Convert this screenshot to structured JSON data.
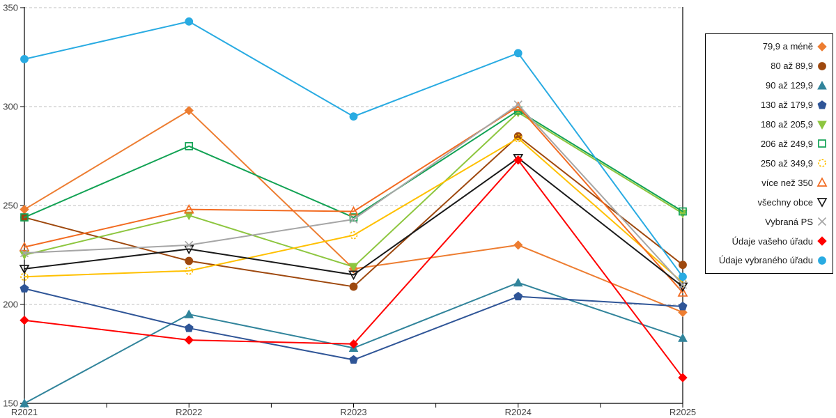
{
  "chart_data": {
    "type": "line",
    "title": "",
    "xlabel": "",
    "ylabel": "",
    "categories": [
      "R2021",
      "R2022",
      "R2023",
      "R2024",
      "R2025"
    ],
    "ylim": [
      150,
      350
    ],
    "yticks": [
      150,
      200,
      250,
      300,
      350
    ],
    "grid": "horizontal dashed",
    "legend_position": "right box",
    "axis_label_color": "#404040",
    "gridline_color": "#bfbfbf",
    "series": [
      {
        "name": "79,9 a méně",
        "color": "#ED7D31",
        "marker": "diamond",
        "filled": true,
        "values": [
          248,
          298,
          218,
          230,
          196
        ]
      },
      {
        "name": "80 až 89,9",
        "color": "#9E480E",
        "marker": "circle",
        "filled": true,
        "values": [
          244,
          222,
          209,
          285,
          220
        ]
      },
      {
        "name": "90 až 129,9",
        "color": "#31849B",
        "marker": "triangle-up",
        "filled": true,
        "values": [
          150,
          195,
          178,
          211,
          183
        ]
      },
      {
        "name": "130 až 179,9",
        "color": "#2F5597",
        "marker": "pentagon",
        "filled": true,
        "values": [
          208,
          188,
          172,
          204,
          199
        ]
      },
      {
        "name": "180 až 205,9",
        "color": "#8DC63F",
        "marker": "triangle-down",
        "filled": true,
        "values": [
          225,
          245,
          219,
          297,
          246
        ]
      },
      {
        "name": "206 až 249,9",
        "color": "#12A254",
        "marker": "square",
        "filled": false,
        "values": [
          244,
          280,
          244,
          298,
          247
        ]
      },
      {
        "name": "250 až 349,9",
        "color": "#FFC000",
        "marker": "circle-dotted",
        "filled": false,
        "values": [
          214,
          217,
          235,
          284,
          211
        ]
      },
      {
        "name": "více než 350",
        "color": "#F26B21",
        "marker": "triangle-up",
        "filled": false,
        "values": [
          229,
          248,
          247,
          300,
          206
        ]
      },
      {
        "name": "všechny obce",
        "color": "#1A1A1A",
        "marker": "triangle-down",
        "filled": false,
        "values": [
          218,
          228,
          215,
          274,
          209
        ]
      },
      {
        "name": "Vybraná PS",
        "color": "#A6A6A6",
        "marker": "x",
        "filled": false,
        "values": [
          226,
          230,
          243,
          301,
          210
        ]
      },
      {
        "name": "Údaje vašeho úřadu",
        "color": "#FF0000",
        "marker": "diamond",
        "filled": true,
        "values": [
          192,
          182,
          180,
          273,
          163
        ]
      },
      {
        "name": "Údaje vybraného úřadu",
        "color": "#29ABE2",
        "marker": "circle",
        "filled": true,
        "values": [
          324,
          343,
          295,
          327,
          214
        ]
      }
    ]
  }
}
